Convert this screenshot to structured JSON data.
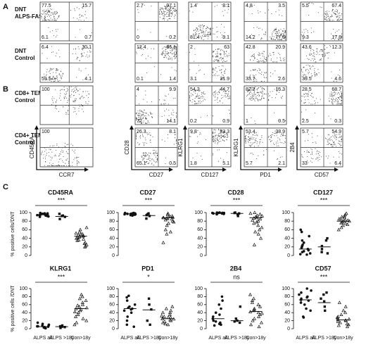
{
  "panels": {
    "letters": [
      "A",
      "B",
      "C"
    ],
    "row_labels": [
      [
        "DNT",
        "ALPS-FAS"
      ],
      [
        "DNT",
        "Control"
      ],
      [
        "CD8+ TEMRA",
        "Control"
      ],
      [
        "CD4+ TEMRA",
        "Control"
      ]
    ],
    "x_axis_labels": [
      "CCR7",
      "CD27",
      "CD127",
      "PD1",
      "CD57"
    ],
    "y_axis_labels": [
      "CD45RA",
      "CD28",
      "KLRG1",
      "KLRG1",
      "2B4"
    ],
    "quadrants": [
      [
        [
          77.5,
          15.7,
          6.1,
          0.7
        ],
        [
          2.7,
          97.1,
          0,
          0.2
        ],
        [
          1.4,
          8.1,
          81.4,
          9.1
        ],
        [
          4.8,
          3.5,
          14.2,
          77.5
        ],
        [
          5.5,
          67.4,
          9.3,
          17.8
        ]
      ],
      [
        [
          6.4,
          30.1,
          59.5,
          4.1
        ],
        [
          12.4,
          86.1,
          0.1,
          1.4
        ],
        [
          2,
          63,
          3.1,
          31.9
        ],
        [
          42.8,
          20.9,
          33.7,
          2.6
        ],
        [
          43.6,
          12.3,
          39.5,
          4.6
        ]
      ],
      [
        [
          100
        ],
        [
          4,
          9.9,
          72,
          14.1
        ],
        [
          54.2,
          44.7,
          0.2,
          0.9
        ],
        [
          82.2,
          16.3,
          1,
          0.5
        ],
        [
          28.5,
          68.7,
          2.5,
          0.3
        ]
      ],
      [
        [
          100
        ],
        [
          26.3,
          8.1,
          65.1,
          0.5
        ],
        [
          9.8,
          83.3,
          1.8,
          5.1
        ],
        [
          53.4,
          38.9,
          5.7,
          2.1
        ],
        [
          5.7,
          54.9,
          33,
          6.4
        ]
      ]
    ]
  },
  "chart_data": [
    {
      "type": "dot",
      "title": "CD45RA",
      "ylabel": "% positive cells/DNT",
      "annotation": "***",
      "ylim": [
        0,
        100
      ],
      "yticks": [
        0,
        20,
        40,
        60,
        80,
        100
      ],
      "values": [
        [
          98,
          97,
          96,
          95,
          99,
          94,
          93,
          92,
          97,
          96,
          98,
          90,
          91,
          95,
          97,
          94
        ],
        [
          97,
          92,
          90,
          85,
          93
        ],
        [
          65,
          60,
          55,
          52,
          50,
          48,
          46,
          45,
          43,
          40,
          38,
          35,
          30,
          28,
          25,
          22,
          20,
          50,
          44,
          42,
          36
        ]
      ],
      "medians": [
        95,
        91,
        45
      ]
    },
    {
      "type": "dot",
      "title": "CD27",
      "annotation": "***",
      "ylim": [
        0,
        100
      ],
      "yticks": [
        0,
        20,
        40,
        60,
        80,
        100
      ],
      "values": [
        [
          99,
          98,
          97,
          96,
          98,
          95,
          94,
          97,
          99,
          96,
          93,
          98,
          97,
          95
        ],
        [
          98,
          96,
          92,
          86,
          94
        ],
        [
          98,
          95,
          92,
          90,
          88,
          86,
          85,
          83,
          80,
          78,
          75,
          70,
          60,
          55,
          50,
          30,
          88,
          91,
          89,
          87
        ]
      ],
      "medians": [
        97,
        93,
        88
      ]
    },
    {
      "type": "dot",
      "title": "CD28",
      "annotation": "***",
      "ylim": [
        0,
        100
      ],
      "yticks": [
        0,
        20,
        40,
        60,
        80,
        100
      ],
      "values": [
        [
          100,
          99,
          99,
          98,
          97,
          99,
          100,
          98,
          96,
          99,
          97,
          98,
          100,
          99
        ],
        [
          100,
          99,
          98,
          92,
          96
        ],
        [
          100,
          98,
          96,
          93,
          90,
          88,
          85,
          82,
          80,
          78,
          75,
          70,
          65,
          60,
          55,
          50,
          40,
          25,
          92,
          87
        ]
      ],
      "medians": [
        98,
        98,
        88
      ]
    },
    {
      "type": "dot",
      "title": "CD127",
      "annotation": "***",
      "ylim": [
        0,
        100
      ],
      "yticks": [
        0,
        20,
        40,
        60,
        80,
        100
      ],
      "values": [
        [
          60,
          55,
          45,
          35,
          30,
          25,
          20,
          15,
          12,
          10,
          8,
          5,
          3,
          2,
          18,
          22
        ],
        [
          40,
          35,
          22,
          15,
          8,
          5
        ],
        [
          98,
          95,
          92,
          90,
          88,
          85,
          83,
          82,
          80,
          78,
          76,
          75,
          72,
          70,
          65,
          60,
          85,
          80
        ]
      ],
      "medians": [
        15,
        20,
        80
      ]
    },
    {
      "type": "dot",
      "title": "KLRG1",
      "ylabel": "% positive cells /DNT",
      "annotation": "***",
      "categories": [
        "ALPS all",
        "ALPS >18y",
        "Con>18y"
      ],
      "ylim": [
        0,
        100
      ],
      "yticks": [
        0,
        20,
        40,
        60,
        80,
        100
      ],
      "values": [
        [
          15,
          12,
          10,
          8,
          6,
          5,
          4,
          3,
          2,
          1,
          8,
          6,
          3,
          2
        ],
        [
          8,
          6,
          5,
          4,
          2
        ],
        [
          85,
          80,
          75,
          70,
          65,
          60,
          55,
          52,
          50,
          48,
          45,
          42,
          40,
          35,
          30,
          25,
          20,
          15,
          10,
          58
        ]
      ],
      "medians": [
        5,
        5,
        50
      ]
    },
    {
      "type": "dot",
      "title": "PD1",
      "annotation": "*",
      "categories": [
        "ALPS all",
        "ALPS >18y",
        "Con>18y"
      ],
      "ylim": [
        0,
        100
      ],
      "yticks": [
        0,
        20,
        40,
        60,
        80,
        100
      ],
      "values": [
        [
          82,
          78,
          70,
          60,
          55,
          52,
          50,
          48,
          45,
          40,
          30,
          20,
          10,
          5
        ],
        [
          75,
          60,
          48,
          20,
          10
        ],
        [
          55,
          50,
          45,
          40,
          35,
          32,
          30,
          28,
          25,
          22,
          20,
          18,
          15,
          12,
          10,
          40,
          28,
          24
        ]
      ],
      "medians": [
        50,
        47,
        25
      ]
    },
    {
      "type": "dot",
      "title": "2B4",
      "annotation": "ns",
      "categories": [
        "ALPS all",
        "ALPS >18y",
        "Con>18y"
      ],
      "ylim": [
        0,
        100
      ],
      "yticks": [
        0,
        20,
        40,
        60,
        80,
        100
      ],
      "values": [
        [
          80,
          70,
          60,
          50,
          40,
          35,
          30,
          25,
          20,
          18,
          15,
          12,
          10,
          8
        ],
        [
          55,
          25,
          20,
          18,
          15
        ],
        [
          85,
          75,
          70,
          65,
          60,
          55,
          50,
          45,
          42,
          40,
          38,
          35,
          30,
          25,
          20,
          15,
          10,
          5,
          48
        ]
      ],
      "medians": [
        25,
        20,
        43
      ]
    },
    {
      "type": "dot",
      "title": "CD57",
      "annotation": "***",
      "categories": [
        "ALPS all",
        "ALPS >18y",
        "Con>18y"
      ],
      "ylim": [
        0,
        100
      ],
      "yticks": [
        0,
        20,
        40,
        60,
        80,
        100
      ],
      "values": [
        [
          100,
          95,
          90,
          85,
          80,
          78,
          75,
          72,
          70,
          65,
          60,
          50,
          45,
          30,
          28
        ],
        [
          90,
          85,
          75,
          68,
          55,
          45
        ],
        [
          65,
          55,
          45,
          40,
          35,
          30,
          28,
          25,
          22,
          20,
          18,
          15,
          12,
          10,
          8,
          5,
          24,
          21
        ]
      ],
      "medians": [
        72,
        65,
        22
      ]
    }
  ]
}
